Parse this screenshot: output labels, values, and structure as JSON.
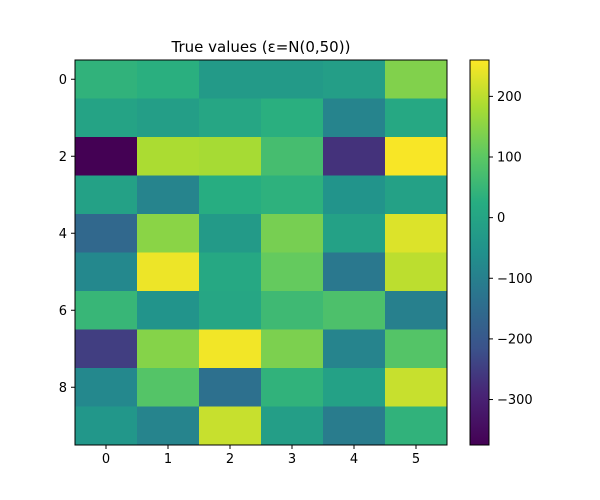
{
  "chart_data": {
    "type": "heatmap",
    "title": "True values (ε=N(0,50))",
    "xlabel": "",
    "ylabel": "",
    "rows": 10,
    "cols": 6,
    "x_ticks": [
      0,
      1,
      2,
      3,
      4,
      5
    ],
    "y_ticks": [
      0,
      2,
      4,
      6,
      8
    ],
    "colorbar_ticks": [
      200,
      100,
      0,
      -100,
      -200,
      -300
    ],
    "colorbar_tick_labels": [
      "200",
      "100",
      "0",
      "−100",
      "−200",
      "−300"
    ],
    "vmin": -375,
    "vmax": 260,
    "colormap": "viridis",
    "values": [
      [
        40,
        30,
        -30,
        -30,
        -20,
        140
      ],
      [
        -5,
        -20,
        5,
        30,
        -90,
        10
      ],
      [
        -375,
        185,
        180,
        70,
        -270,
        255
      ],
      [
        -10,
        -90,
        25,
        35,
        -50,
        -10
      ],
      [
        -160,
        150,
        -30,
        130,
        -10,
        230
      ],
      [
        -80,
        245,
        10,
        110,
        -120,
        200
      ],
      [
        50,
        -50,
        5,
        60,
        80,
        -100
      ],
      [
        -250,
        145,
        250,
        135,
        -90,
        90
      ],
      [
        -80,
        90,
        -140,
        40,
        -10,
        210
      ],
      [
        -40,
        -90,
        210,
        -20,
        -110,
        40
      ]
    ]
  }
}
